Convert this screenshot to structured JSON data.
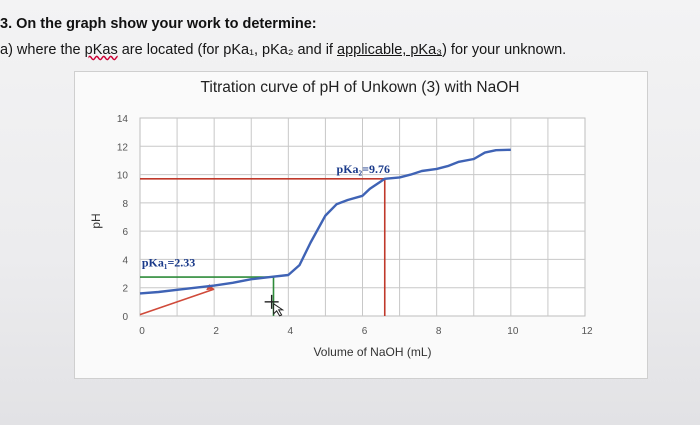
{
  "question": {
    "line1": "3. On the graph show your work to determine:",
    "line2_parts": [
      {
        "text": "a) where the ",
        "style": "plain"
      },
      {
        "text": "pKas",
        "style": "spell"
      },
      {
        "text": " are located (for pKa₁, pKa₂ and if ",
        "style": "plain"
      },
      {
        "text": "applicable,  pKa₃",
        "style": "underline"
      },
      {
        "text": ") for your unknown.",
        "style": "plain"
      }
    ]
  },
  "chart_data": {
    "type": "line",
    "title": "Titration curve of pH of Unkown (3) with NaOH",
    "xlabel": "Volume of NaOH (mL)",
    "ylabel": "pH",
    "xlim": [
      0,
      12
    ],
    "ylim": [
      0,
      14
    ],
    "x_ticks": [
      0,
      2,
      4,
      6,
      8,
      10,
      12
    ],
    "y_ticks": [
      0,
      2,
      4,
      6,
      8,
      10,
      12,
      14
    ],
    "grid": true,
    "series": [
      {
        "color": "#3f63b5",
        "x": [
          0,
          0.5,
          1,
          1.5,
          2,
          2.5,
          3,
          3.5,
          4,
          4.3,
          4.6,
          5,
          5.3,
          5.6,
          6,
          6.2,
          6.6,
          7,
          7.3,
          7.6,
          8,
          8.3,
          8.6,
          9,
          9.3,
          9.6,
          10
        ],
        "y": [
          1.6,
          1.7,
          1.85,
          2.0,
          2.15,
          2.35,
          2.6,
          2.75,
          2.9,
          3.6,
          5.2,
          7.1,
          7.9,
          8.2,
          8.5,
          9.0,
          9.7,
          9.8,
          10.0,
          10.25,
          10.4,
          10.6,
          10.9,
          11.1,
          11.55,
          11.72,
          11.75
        ]
      }
    ],
    "annotations": [
      {
        "text": "pKa₁=2.33",
        "x": 0.05,
        "y": 3.5
      },
      {
        "text": "pKa₂=9.76",
        "x": 5.3,
        "y": 10.1
      }
    ],
    "construction_lines": {
      "red_diagonal": {
        "color": "#d04a3a",
        "x": [
          0,
          2
        ],
        "y": [
          0.1,
          1.9
        ]
      },
      "red_pka2_horizontal": {
        "color": "#c0392b",
        "x": [
          0,
          6.6
        ],
        "y": [
          9.7,
          9.7
        ]
      },
      "red_pka2_vertical": {
        "color": "#c0392b",
        "x": [
          6.6,
          6.6
        ],
        "y": [
          0,
          9.7
        ]
      },
      "green_horizontal": {
        "color": "#2e8b3a",
        "x": [
          0,
          3.6
        ],
        "y": [
          2.75,
          2.75
        ]
      },
      "green_vertical": {
        "color": "#2e8b3a",
        "x": [
          3.6,
          3.6
        ],
        "y": [
          0,
          2.75
        ]
      }
    },
    "colors": {
      "curve": "#3f63b5",
      "grid": "#c8c8c8",
      "plot_bg": "#ffffff"
    }
  }
}
